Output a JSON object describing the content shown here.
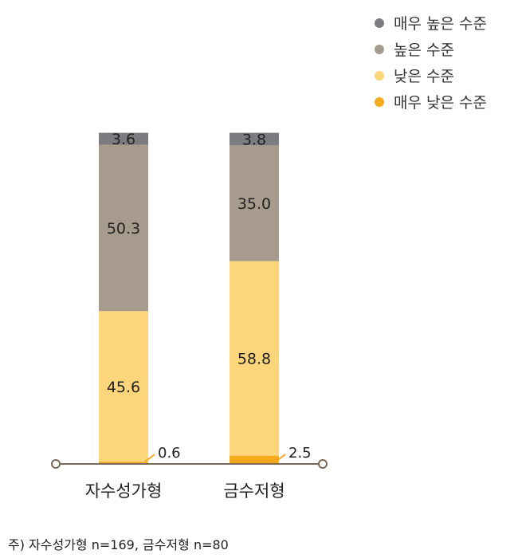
{
  "chart_data": {
    "type": "bar",
    "stacked": true,
    "categories": [
      "자수성가형",
      "금수저형"
    ],
    "series": [
      {
        "name": "매우 낮은 수준",
        "values": [
          0.6,
          2.5
        ],
        "color": "#F5A91C"
      },
      {
        "name": "낮은 수준",
        "values": [
          45.6,
          58.8
        ],
        "color": "#FDD57A"
      },
      {
        "name": "높은 수준",
        "values": [
          50.3,
          35.0
        ],
        "color": "#A79B8D"
      },
      {
        "name": "매우 높은 수준",
        "values": [
          3.6,
          3.8
        ],
        "color": "#7A7C80"
      }
    ],
    "ylim": [
      0,
      100
    ],
    "grid": false,
    "legend_position": "top-right"
  },
  "legend": [
    {
      "label": "매우 높은 수준",
      "color": "#7A7C80"
    },
    {
      "label": "높은 수준",
      "color": "#A79B8D"
    },
    {
      "label": "낮은 수준",
      "color": "#FDD57A"
    },
    {
      "label": "매우 낮은 수준",
      "color": "#F5A91C"
    }
  ],
  "value_labels": {
    "bar1": [
      "0.6",
      "45.6",
      "50.3",
      "3.6"
    ],
    "bar2": [
      "2.5",
      "58.8",
      "35.0",
      "3.8"
    ]
  },
  "note": "주) 자수성가형 n=169, 금수저형 n=80",
  "baseline_color": "#7A6A58"
}
